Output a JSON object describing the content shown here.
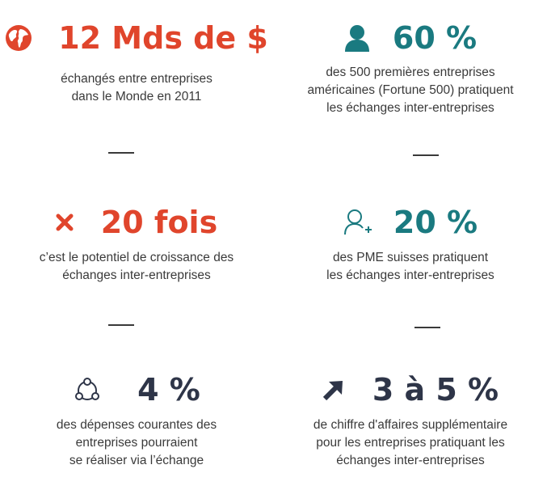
{
  "colors": {
    "red": "#e0452c",
    "teal": "#1a7a80",
    "navy": "#2e3548",
    "text": "#3a3a3a"
  },
  "stats": [
    {
      "value": "12 Mds de $",
      "icon": "globe-icon",
      "lines": [
        "échangés entre entreprises",
        "dans le Monde en 2011"
      ]
    },
    {
      "value": "60 %",
      "icon": "person-icon",
      "lines": [
        "des 500 premières entreprises",
        "américaines (Fortune 500) pratiquent",
        "les échanges inter-entreprises"
      ]
    },
    {
      "value": "20 fois",
      "icon": "multiply-icon",
      "lines": [
        "c’est le potentiel de croissance des",
        "échanges inter-entreprises"
      ]
    },
    {
      "value": "20 %",
      "icon": "person-plus-icon",
      "lines": [
        "des PME suisses pratiquent",
        "les échanges inter-entreprises"
      ]
    },
    {
      "value": "4 %",
      "icon": "network-circle-icon",
      "lines": [
        "des dépenses courantes des",
        "entreprises pourraient",
        "se réaliser via l’échange"
      ]
    },
    {
      "value": "3 à 5 %",
      "icon": "arrow-up-right-icon",
      "lines": [
        "de chiffre d'affaires supplémentaire",
        "pour les entreprises pratiquant les",
        "échanges inter-entreprises"
      ]
    }
  ]
}
